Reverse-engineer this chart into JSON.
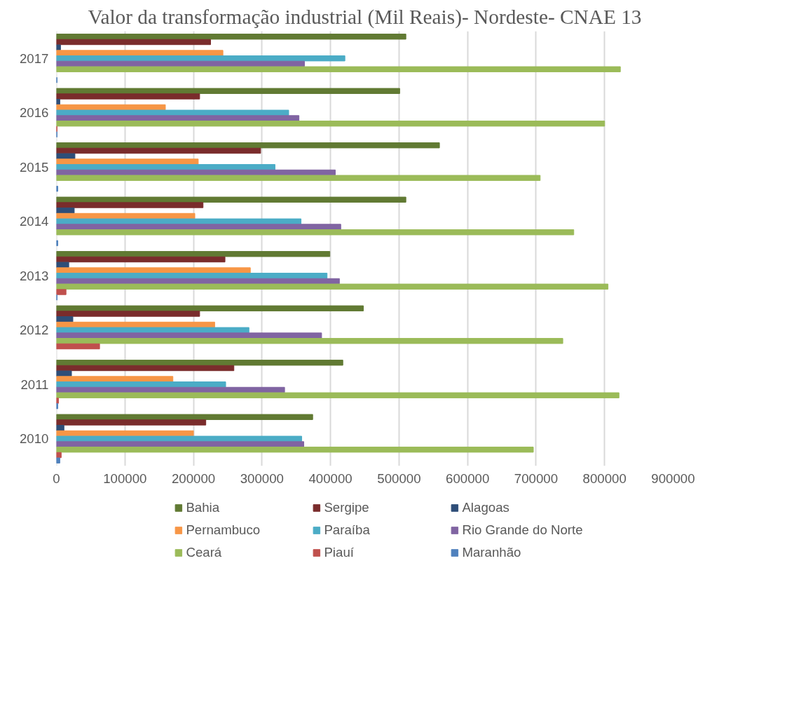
{
  "chart_data": {
    "type": "bar",
    "orientation": "horizontal",
    "title": "Valor da transformação industrial (Mil Reais)- Nordeste- CNAE 13",
    "categories": [
      "2017",
      "2016",
      "2015",
      "2014",
      "2013",
      "2012",
      "2011",
      "2010"
    ],
    "series": [
      {
        "name": "Bahia",
        "color": "#617a33",
        "values": [
          510000,
          501000,
          559000,
          510000,
          399000,
          448000,
          418000,
          374000
        ]
      },
      {
        "name": "Sergipe",
        "color": "#7a2c2c",
        "values": [
          225000,
          209000,
          298000,
          214000,
          246000,
          209000,
          259000,
          218000
        ]
      },
      {
        "name": "Alagoas",
        "color": "#2e4e78",
        "values": [
          6000,
          5000,
          27000,
          26000,
          18000,
          24000,
          22000,
          11000
        ]
      },
      {
        "name": "Pernambuco",
        "color": "#f79646",
        "values": [
          243000,
          159000,
          207000,
          202000,
          283000,
          231000,
          170000,
          200000
        ]
      },
      {
        "name": "Paraíba",
        "color": "#4bacc6",
        "values": [
          421000,
          339000,
          319000,
          357000,
          395000,
          281000,
          247000,
          358000
        ]
      },
      {
        "name": "Rio Grande do Norte",
        "color": "#8064a2",
        "values": [
          362000,
          354000,
          407000,
          415000,
          413000,
          387000,
          333000,
          361000
        ]
      },
      {
        "name": "Ceará",
        "color": "#9bbb59",
        "values": [
          823000,
          800000,
          706000,
          755000,
          805000,
          739000,
          821000,
          696000
        ]
      },
      {
        "name": "Piauí",
        "color": "#c0504d",
        "values": [
          null,
          1000,
          null,
          null,
          14000,
          63000,
          3000,
          7000
        ]
      },
      {
        "name": "Maranhão",
        "color": "#4f81bd",
        "values": [
          1000,
          1000,
          2000,
          2000,
          1000,
          null,
          2000,
          5000
        ]
      }
    ],
    "xlim": [
      0,
      900000
    ],
    "xticks": [
      0,
      100000,
      200000,
      300000,
      400000,
      500000,
      600000,
      700000,
      800000,
      900000
    ],
    "grid": "x",
    "legend": "bottom"
  }
}
